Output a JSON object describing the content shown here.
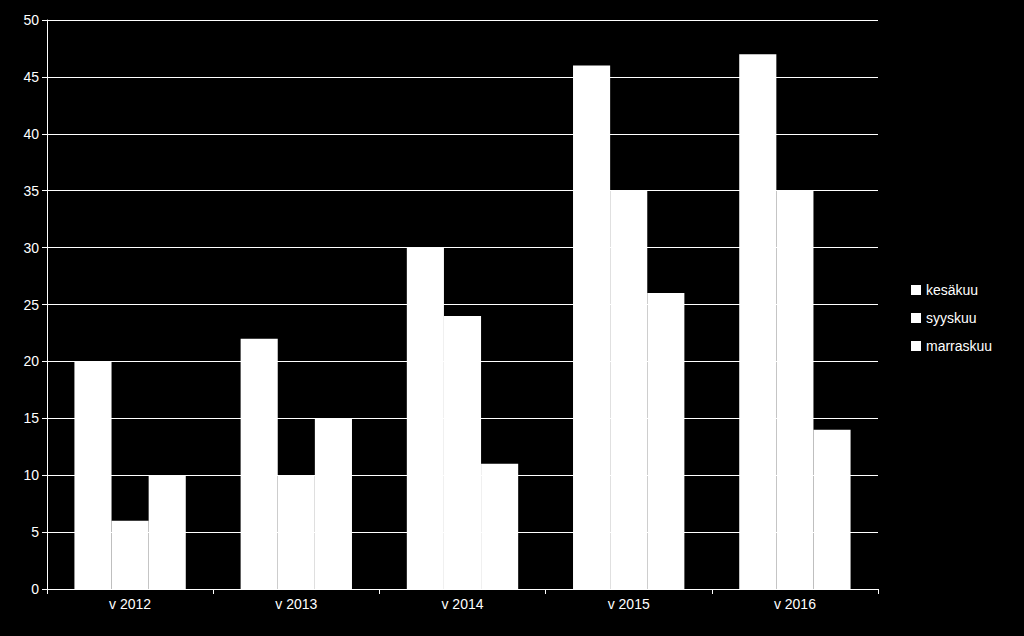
{
  "chart_data": {
    "type": "bar",
    "categories": [
      "v 2012",
      "v 2013",
      "v 2014",
      "v 2015",
      "v 2016"
    ],
    "series": [
      {
        "name": "kesäkuu",
        "color": "#ffffff",
        "values": [
          20,
          22,
          30,
          46,
          47
        ]
      },
      {
        "name": "syyskuu",
        "color": "#ffffff",
        "values": [
          6,
          10,
          24,
          35,
          35
        ]
      },
      {
        "name": "marraskuu",
        "color": "#ffffff",
        "values": [
          10,
          15,
          11,
          26,
          14
        ]
      }
    ],
    "ylim": [
      0,
      50
    ],
    "yticks": [
      0,
      5,
      10,
      15,
      20,
      25,
      30,
      35,
      40,
      45,
      50
    ],
    "grid": true,
    "legend": "right"
  }
}
